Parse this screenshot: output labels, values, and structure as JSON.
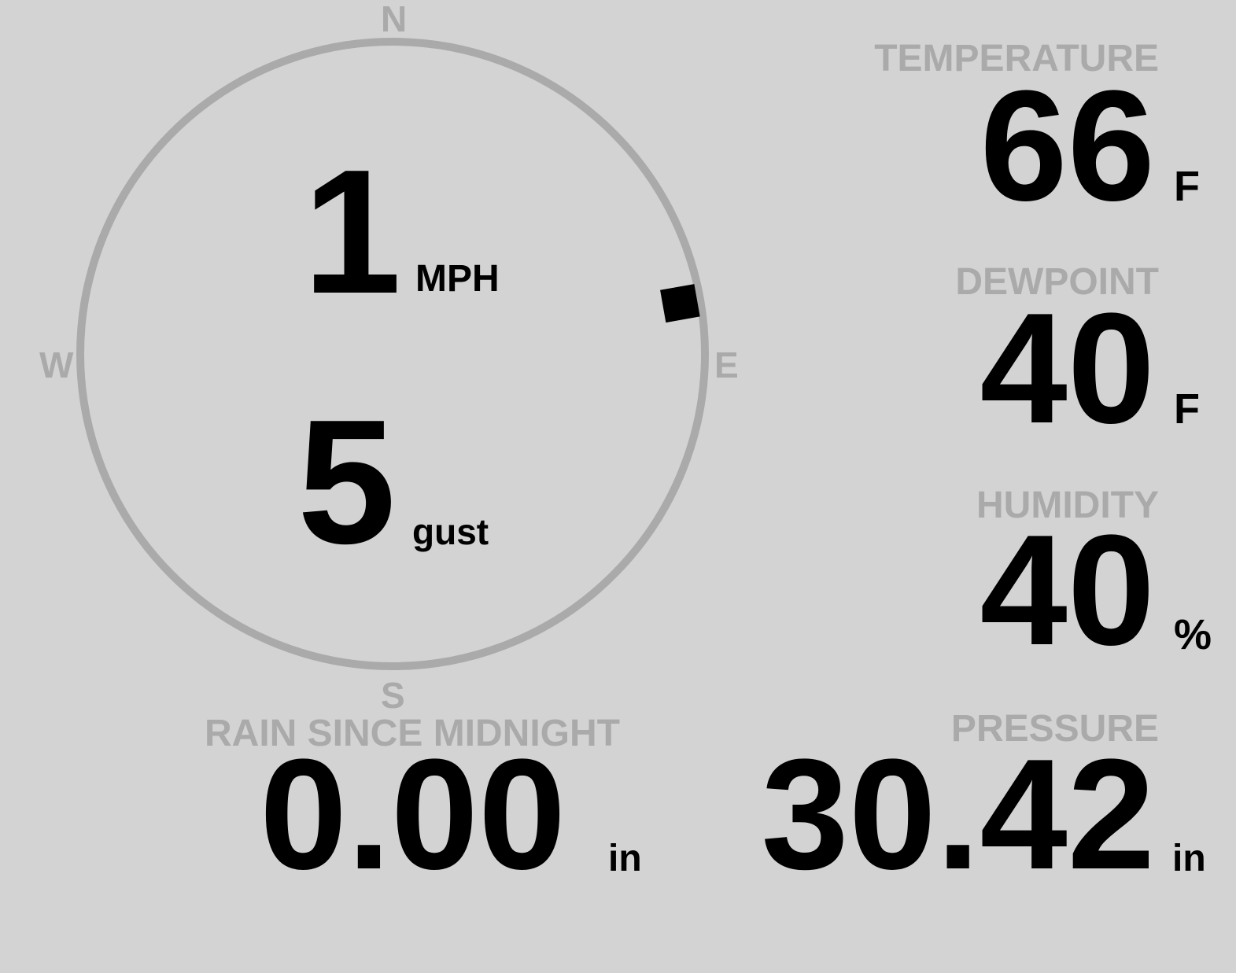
{
  "colors": {
    "background": "#d3d3d3",
    "label": "#aaaaaa",
    "value": "#000000",
    "ring": "#aaaaaa"
  },
  "wind": {
    "compass": {
      "n": "N",
      "e": "E",
      "s": "S",
      "w": "W"
    },
    "direction_deg": 80,
    "speed": "1",
    "speed_unit": "MPH",
    "gust": "5",
    "gust_unit": "gust"
  },
  "temperature": {
    "label": "TEMPERATURE",
    "value": "66",
    "unit": "F"
  },
  "dewpoint": {
    "label": "DEWPOINT",
    "value": "40",
    "unit": "F"
  },
  "humidity": {
    "label": "HUMIDITY",
    "value": "40",
    "unit": "%"
  },
  "rain": {
    "label": "RAIN SINCE MIDNIGHT",
    "value": "0.00",
    "unit": "in"
  },
  "pressure": {
    "label": "PRESSURE",
    "value": "30.42",
    "unit": "in"
  }
}
